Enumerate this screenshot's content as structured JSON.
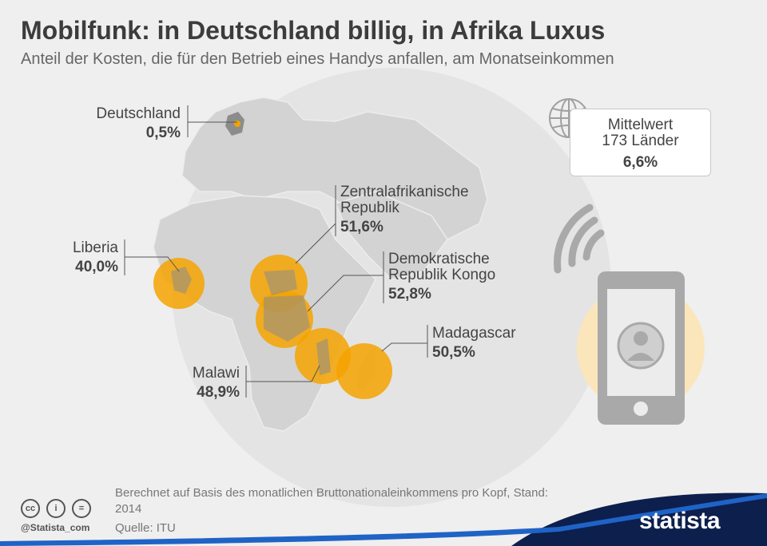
{
  "title": "Mobilfunk: in Deutschland billig, in Afrika Luxus",
  "subtitle": "Anteil der Kosten, die für den Betrieb eines Handys anfallen, am Monatseinkommen",
  "chart_data": {
    "type": "bubble-map",
    "unit": "%",
    "points": [
      {
        "country": "Deutschland",
        "label": [
          "Deutschland"
        ],
        "value": 0.5,
        "value_text": "0,5%"
      },
      {
        "country": "Liberia",
        "label": [
          "Liberia"
        ],
        "value": 40.0,
        "value_text": "40,0%"
      },
      {
        "country": "Zentralafrikanische Republik",
        "label": [
          "Zentralafrikanische",
          "Republik"
        ],
        "value": 51.6,
        "value_text": "51,6%"
      },
      {
        "country": "Demokratische Republik Kongo",
        "label": [
          "Demokratische",
          "Republik Kongo"
        ],
        "value": 52.8,
        "value_text": "52,8%"
      },
      {
        "country": "Madagascar",
        "label": [
          "Madagascar"
        ],
        "value": 50.5,
        "value_text": "50,5%"
      },
      {
        "country": "Malawi",
        "label": [
          "Malawi"
        ],
        "value": 48.9,
        "value_text": "48,9%"
      }
    ],
    "average": {
      "label": "Mittelwert\n173 Länder",
      "value": 6.6,
      "value_text": "6,6%"
    }
  },
  "footer": {
    "note": "Berechnet auf Basis des monatlichen Bruttonationaleinkommens pro Kopf, Stand: 2014",
    "source": "Quelle: ITU",
    "handle": "@Statista_com",
    "brand": "statista"
  },
  "colors": {
    "bubble": "#f5a300",
    "land": "#d3d3d3",
    "highlight": "#8c8c8c",
    "phone": "#a9a9a9",
    "footer_wave": "#0c1f4d",
    "accent": "#1f63c6"
  },
  "icons": [
    "globe-icon",
    "phone-icon",
    "wifi-icon",
    "user-icon",
    "cc-icon",
    "by-icon",
    "nd-icon"
  ]
}
